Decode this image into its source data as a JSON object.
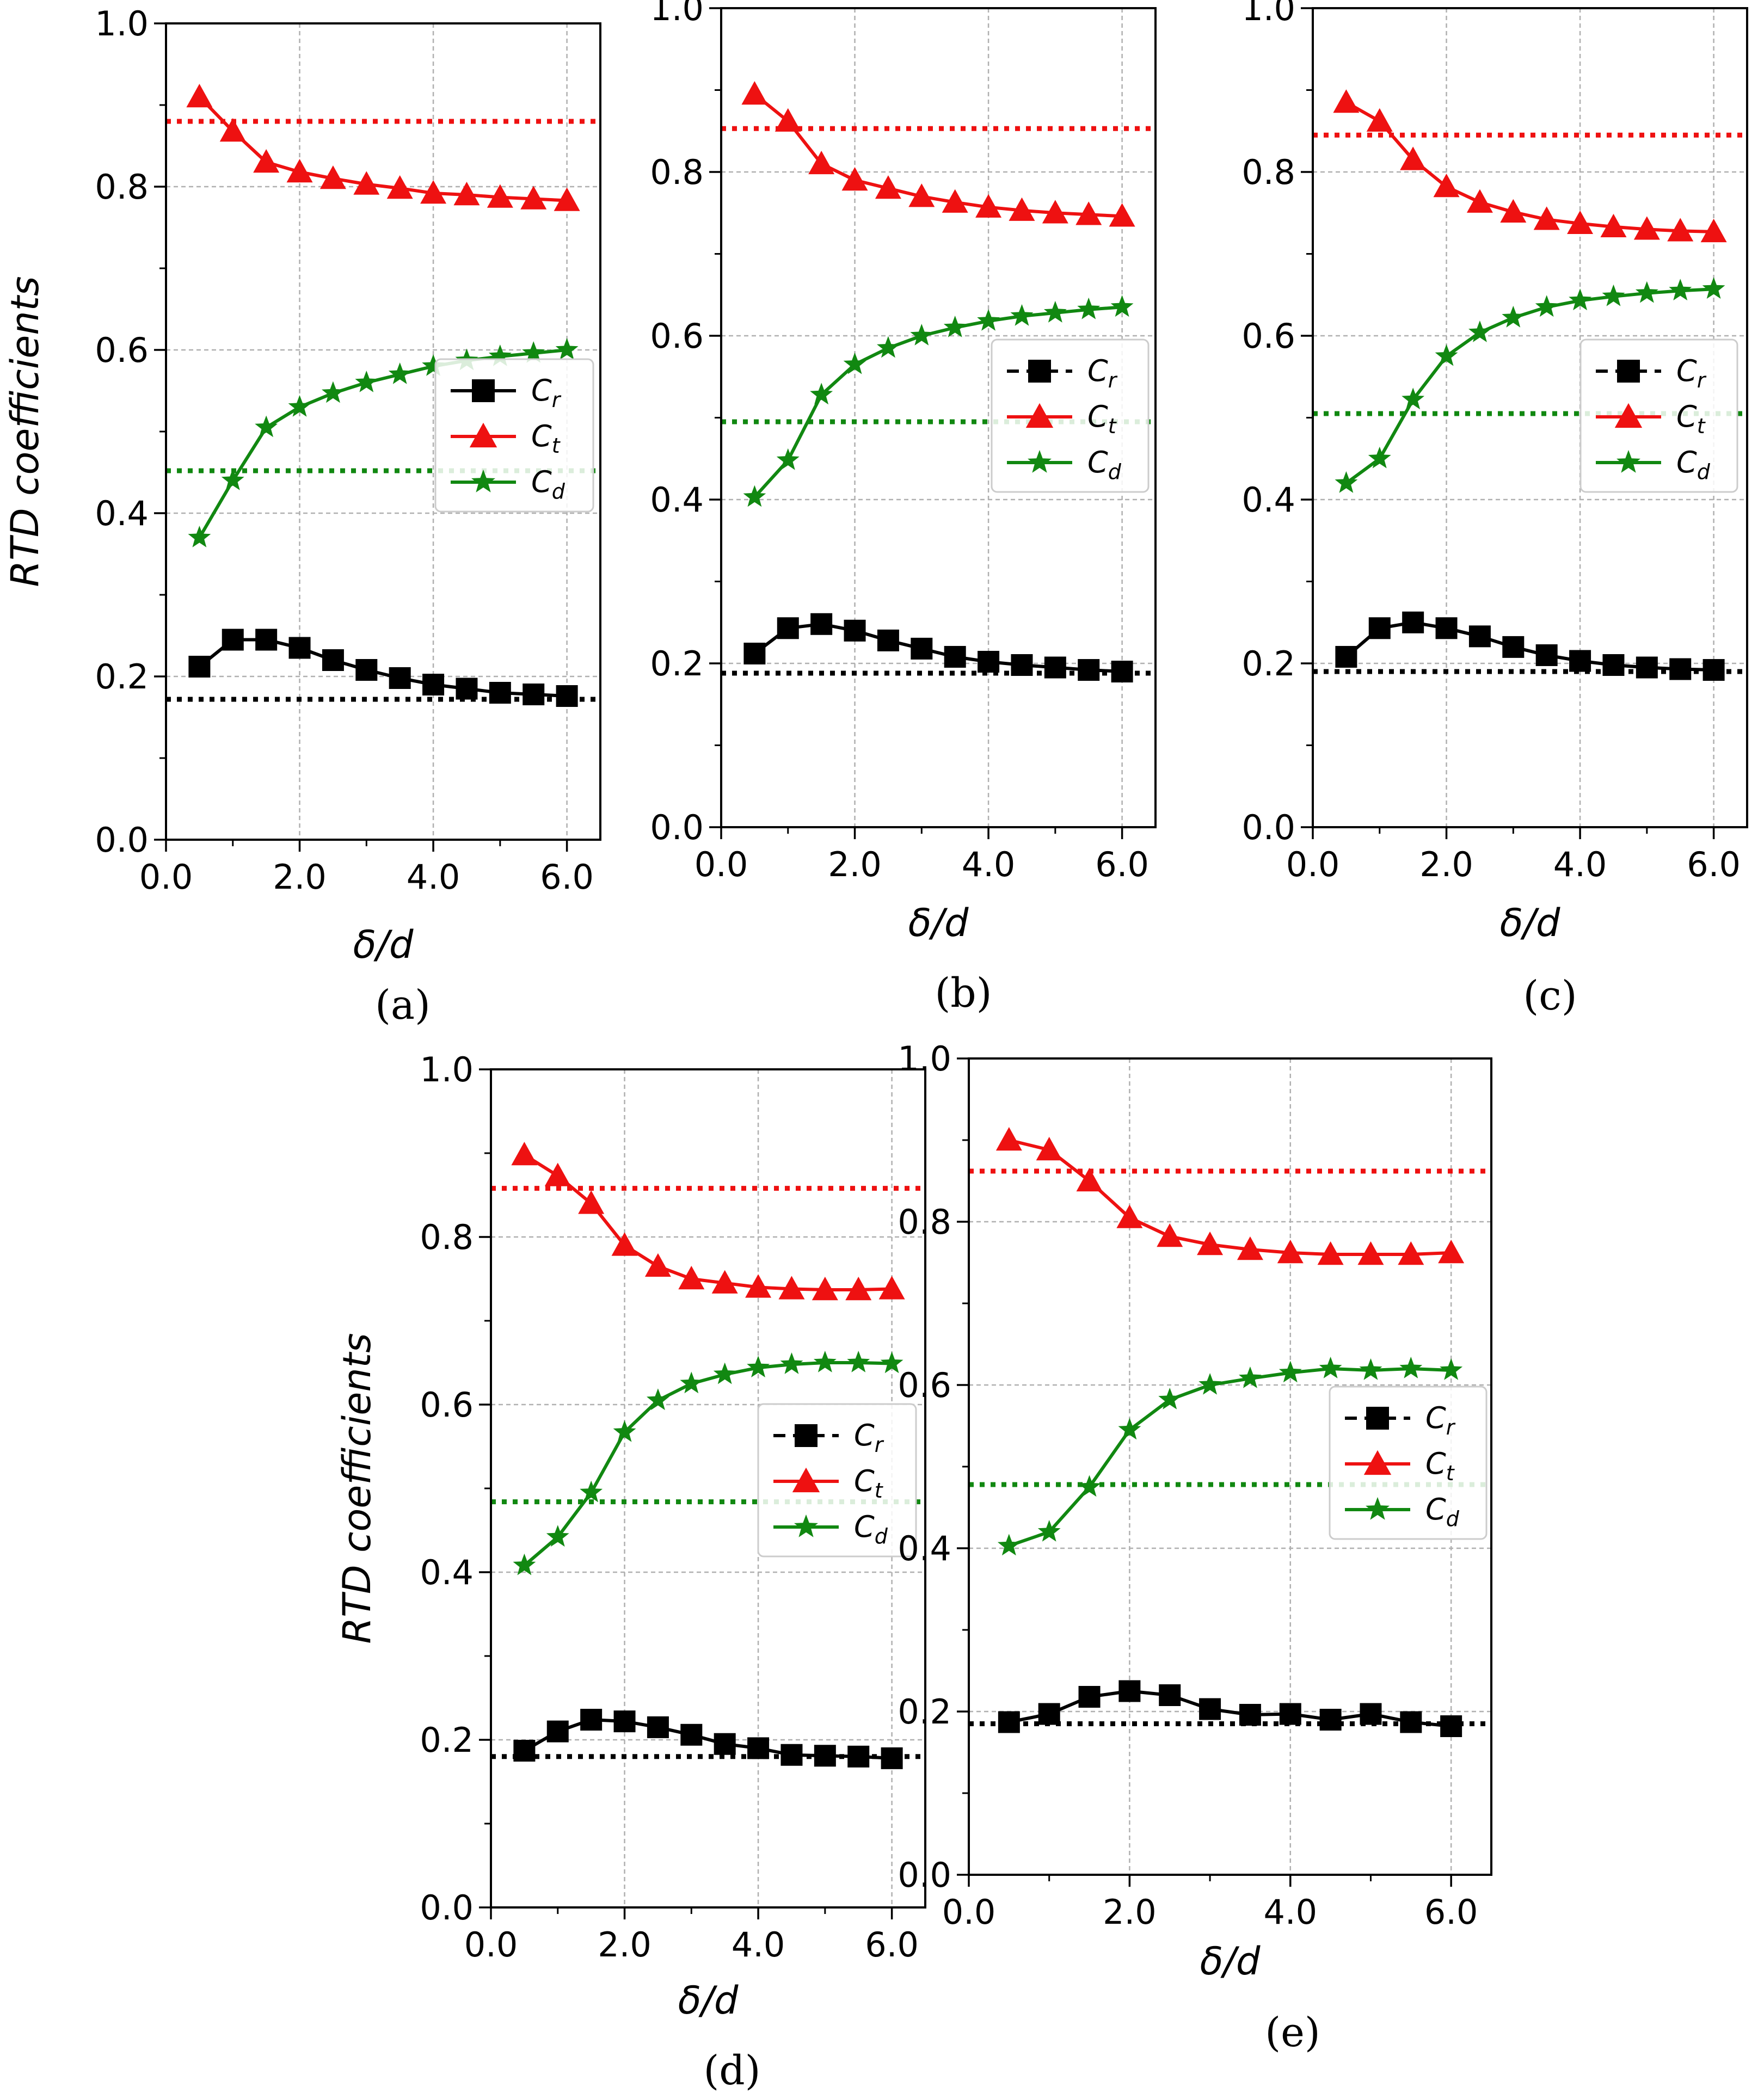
{
  "colors": {
    "Cr": "#000000",
    "Ct": "#ee1111",
    "Cd": "#118811",
    "grid": "#b0b0b0"
  },
  "axis_labels": {
    "xlabel": "δ/d",
    "ylabel": "RTD coefficients"
  },
  "legend_labels": [
    {
      "main": "C",
      "sub": "r"
    },
    {
      "main": "C",
      "sub": "t"
    },
    {
      "main": "C",
      "sub": "d"
    }
  ],
  "chart_data": [
    {
      "type": "line",
      "panel_label": "(a)",
      "xlabel": "δ/d",
      "ylabel": "RTD coefficients",
      "xlim": [
        0,
        6.5
      ],
      "ylim": [
        0,
        1.0
      ],
      "xticks": [
        "0.0",
        "2.0",
        "4.0",
        "6.0"
      ],
      "yticks": [
        "0.0",
        "0.2",
        "0.4",
        "0.6",
        "0.8",
        "1.0"
      ],
      "x": [
        0.5,
        1.0,
        1.5,
        2.0,
        2.5,
        3.0,
        3.5,
        4.0,
        4.5,
        5.0,
        5.5,
        6.0
      ],
      "series": [
        {
          "name": "Cr",
          "values": [
            0.212,
            0.245,
            0.245,
            0.235,
            0.22,
            0.208,
            0.198,
            0.19,
            0.185,
            0.18,
            0.178,
            0.176
          ]
        },
        {
          "name": "Ct",
          "values": [
            0.91,
            0.868,
            0.83,
            0.818,
            0.81,
            0.803,
            0.798,
            0.792,
            0.79,
            0.787,
            0.785,
            0.783
          ]
        },
        {
          "name": "Cd",
          "values": [
            0.37,
            0.44,
            0.505,
            0.53,
            0.547,
            0.56,
            0.57,
            0.58,
            0.587,
            0.592,
            0.596,
            0.6
          ]
        }
      ],
      "reference_lines": {
        "Cr": 0.172,
        "Ct": 0.88,
        "Cd": 0.452
      },
      "legend_loc": "center-right",
      "legend_style": "solid",
      "grid": true
    },
    {
      "type": "line",
      "panel_label": "(b)",
      "xlabel": "δ/d",
      "ylabel": "",
      "xlim": [
        0,
        6.5
      ],
      "ylim": [
        0,
        1.0
      ],
      "xticks": [
        "0.0",
        "2.0",
        "4.0",
        "6.0"
      ],
      "yticks": [
        "0.0",
        "0.2",
        "0.4",
        "0.6",
        "0.8",
        "1.0"
      ],
      "x": [
        0.5,
        1.0,
        1.5,
        2.0,
        2.5,
        3.0,
        3.5,
        4.0,
        4.5,
        5.0,
        5.5,
        6.0
      ],
      "series": [
        {
          "name": "Cr",
          "values": [
            0.212,
            0.243,
            0.248,
            0.24,
            0.228,
            0.218,
            0.208,
            0.202,
            0.198,
            0.195,
            0.192,
            0.19
          ]
        },
        {
          "name": "Ct",
          "values": [
            0.895,
            0.862,
            0.81,
            0.79,
            0.78,
            0.77,
            0.763,
            0.757,
            0.753,
            0.75,
            0.748,
            0.746
          ]
        },
        {
          "name": "Cd",
          "values": [
            0.403,
            0.448,
            0.528,
            0.565,
            0.585,
            0.6,
            0.61,
            0.618,
            0.624,
            0.628,
            0.632,
            0.635
          ]
        }
      ],
      "reference_lines": {
        "Cr": 0.188,
        "Ct": 0.853,
        "Cd": 0.495
      },
      "legend_loc": "center-right",
      "legend_style": "dotted",
      "grid": true
    },
    {
      "type": "line",
      "panel_label": "(c)",
      "xlabel": "δ/d",
      "ylabel": "",
      "xlim": [
        0,
        6.5
      ],
      "ylim": [
        0,
        1.0
      ],
      "xticks": [
        "0.0",
        "2.0",
        "4.0",
        "6.0"
      ],
      "yticks": [
        "0.0",
        "0.2",
        "0.4",
        "0.6",
        "0.8",
        "1.0"
      ],
      "x": [
        0.5,
        1.0,
        1.5,
        2.0,
        2.5,
        3.0,
        3.5,
        4.0,
        4.5,
        5.0,
        5.5,
        6.0
      ],
      "series": [
        {
          "name": "Cr",
          "values": [
            0.208,
            0.243,
            0.25,
            0.243,
            0.233,
            0.22,
            0.21,
            0.203,
            0.198,
            0.195,
            0.193,
            0.192
          ]
        },
        {
          "name": "Ct",
          "values": [
            0.885,
            0.862,
            0.815,
            0.782,
            0.763,
            0.751,
            0.742,
            0.737,
            0.733,
            0.73,
            0.728,
            0.727
          ]
        },
        {
          "name": "Cd",
          "values": [
            0.42,
            0.45,
            0.522,
            0.575,
            0.604,
            0.622,
            0.635,
            0.643,
            0.648,
            0.652,
            0.655,
            0.657
          ]
        }
      ],
      "reference_lines": {
        "Cr": 0.19,
        "Ct": 0.845,
        "Cd": 0.505
      },
      "legend_loc": "center-right",
      "legend_style": "dotted",
      "grid": true
    },
    {
      "type": "line",
      "panel_label": "(d)",
      "xlabel": "δ/d",
      "ylabel": "RTD coefficients",
      "xlim": [
        0,
        6.5
      ],
      "ylim": [
        0,
        1.0
      ],
      "xticks": [
        "0.0",
        "2.0",
        "4.0",
        "6.0"
      ],
      "yticks": [
        "0.0",
        "0.2",
        "0.4",
        "0.6",
        "0.8",
        "1.0"
      ],
      "x": [
        0.5,
        1.0,
        1.5,
        2.0,
        2.5,
        3.0,
        3.5,
        4.0,
        4.5,
        5.0,
        5.5,
        6.0
      ],
      "series": [
        {
          "name": "Cr",
          "values": [
            0.187,
            0.21,
            0.224,
            0.222,
            0.215,
            0.206,
            0.195,
            0.19,
            0.182,
            0.181,
            0.18,
            0.178
          ]
        },
        {
          "name": "Ct",
          "values": [
            0.898,
            0.873,
            0.84,
            0.79,
            0.765,
            0.75,
            0.745,
            0.74,
            0.738,
            0.737,
            0.737,
            0.738
          ]
        },
        {
          "name": "Cd",
          "values": [
            0.408,
            0.442,
            0.495,
            0.567,
            0.605,
            0.625,
            0.636,
            0.644,
            0.648,
            0.65,
            0.65,
            0.649
          ]
        }
      ],
      "reference_lines": {
        "Cr": 0.18,
        "Ct": 0.858,
        "Cd": 0.484
      },
      "legend_loc": "center-right",
      "legend_style": "dotted",
      "grid": true
    },
    {
      "type": "line",
      "panel_label": "(e)",
      "xlabel": "δ/d",
      "ylabel": "",
      "xlim": [
        0,
        6.5
      ],
      "ylim": [
        0,
        1.0
      ],
      "xticks": [
        "0.0",
        "2.0",
        "4.0",
        "6.0"
      ],
      "yticks": [
        "0.0",
        "0.2",
        "0.4",
        "0.6",
        "0.8",
        "1.0"
      ],
      "x": [
        0.5,
        1.0,
        1.5,
        2.0,
        2.5,
        3.0,
        3.5,
        4.0,
        4.5,
        5.0,
        5.5,
        6.0
      ],
      "series": [
        {
          "name": "Cr",
          "values": [
            0.187,
            0.197,
            0.218,
            0.225,
            0.22,
            0.203,
            0.196,
            0.197,
            0.19,
            0.197,
            0.187,
            0.182
          ]
        },
        {
          "name": "Ct",
          "values": [
            0.9,
            0.888,
            0.85,
            0.805,
            0.782,
            0.772,
            0.766,
            0.762,
            0.76,
            0.76,
            0.76,
            0.762
          ]
        },
        {
          "name": "Cd",
          "values": [
            0.403,
            0.42,
            0.475,
            0.545,
            0.582,
            0.6,
            0.608,
            0.615,
            0.62,
            0.618,
            0.62,
            0.618
          ]
        }
      ],
      "reference_lines": {
        "Cr": 0.185,
        "Ct": 0.862,
        "Cd": 0.478
      },
      "legend_loc": "center-right",
      "legend_style": "dotted",
      "grid": true
    }
  ]
}
